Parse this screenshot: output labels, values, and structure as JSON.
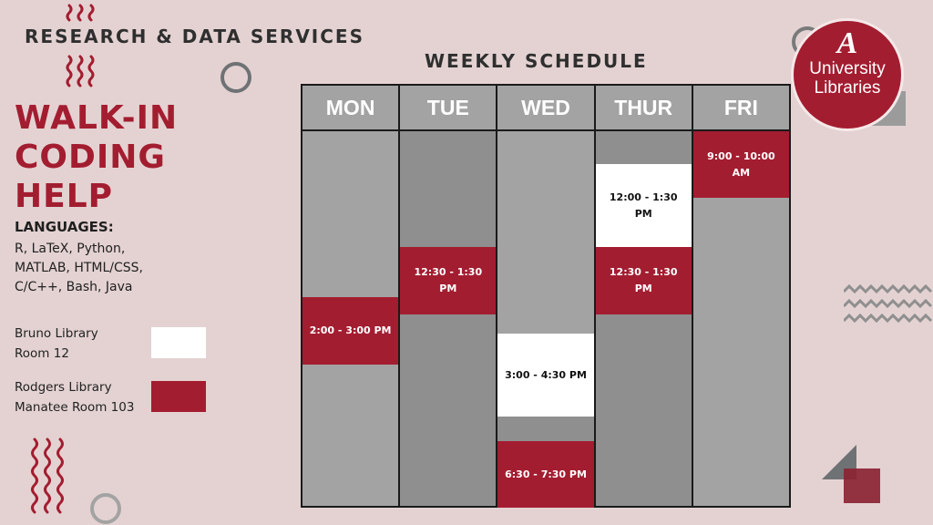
{
  "header": {
    "text": "RESEARCH & DATA SERVICES"
  },
  "title": {
    "lines": [
      "WALK-IN",
      "CODING",
      "HELP"
    ]
  },
  "languages": {
    "heading": "LANGUAGES:",
    "lines": [
      "R, LaTeX, Python,",
      "MATLAB, HTML/CSS,",
      "C/C++, Bash, Java"
    ]
  },
  "legend": [
    {
      "lines": [
        "Bruno Library",
        "Room 12"
      ],
      "color": "#ffffff"
    },
    {
      "lines": [
        "Rodgers Library",
        "Manatee Room 103"
      ],
      "color": "#a31d30"
    }
  ],
  "schedule": {
    "title": "WEEKLY SCHEDULE",
    "days": [
      {
        "label": "MON",
        "slots": [
          {
            "time": "2:00 - 3:00 PM",
            "location": "Rodgers Library"
          }
        ]
      },
      {
        "label": "TUE",
        "slots": [
          {
            "time": "12:30 - 1:30 PM",
            "location": "Rodgers Library"
          }
        ]
      },
      {
        "label": "WED",
        "slots": [
          {
            "time": "3:00 - 4:30 PM",
            "location": "Bruno Library"
          },
          {
            "time": "6:30 - 7:30 PM",
            "location": "Rodgers Library"
          }
        ]
      },
      {
        "label": "THUR",
        "slots": [
          {
            "time": "12:00 - 1:30 PM",
            "location": "Bruno Library"
          },
          {
            "time": "12:30 - 1:30 PM",
            "location": "Rodgers Library"
          }
        ]
      },
      {
        "label": "FRI",
        "slots": [
          {
            "time": "9:00 - 10:00 AM",
            "location": "Rodgers Library"
          }
        ]
      }
    ]
  },
  "logo": {
    "letter": "A",
    "line1": "University",
    "line2": "Libraries"
  },
  "colors": {
    "background": "#e4d2d2",
    "accent": "#a31d30",
    "column_gray": "#a3a3a3",
    "column_gray_dark": "#8f8f8f"
  }
}
